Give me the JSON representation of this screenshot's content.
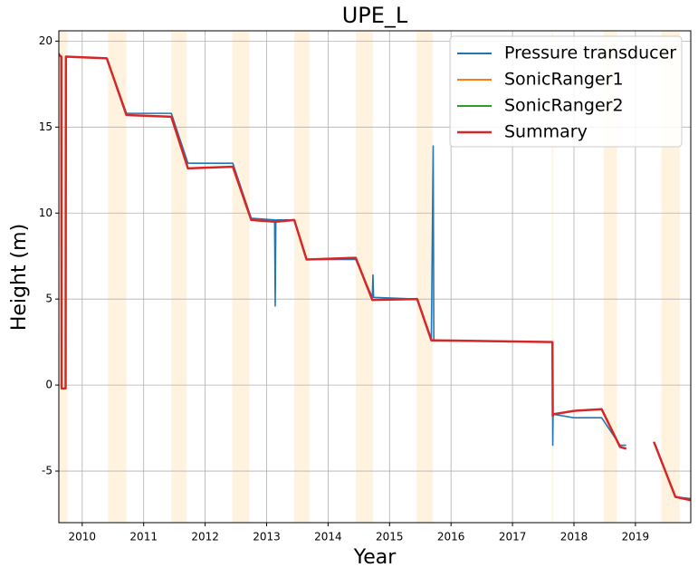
{
  "chart_data": {
    "type": "line",
    "title": "UPE_L",
    "xlabel": "Year",
    "ylabel": "Height (m)",
    "xlim": [
      2009.62,
      2019.9
    ],
    "xticks": [
      2010,
      2011,
      2012,
      2013,
      2014,
      2015,
      2016,
      2017,
      2018,
      2019
    ],
    "ylim": [
      -8,
      20.6
    ],
    "yticks": [
      -5,
      0,
      5,
      10,
      15,
      20
    ],
    "grid": true,
    "legend": "upper right",
    "shaded_spans": [
      [
        2009.62,
        2009.76
      ],
      [
        2010.42,
        2010.72
      ],
      [
        2011.45,
        2011.7
      ],
      [
        2012.44,
        2012.72
      ],
      [
        2013.45,
        2013.7
      ],
      [
        2014.45,
        2014.73
      ],
      [
        2015.44,
        2015.7
      ],
      [
        2017.64,
        2017.66
      ],
      [
        2018.48,
        2018.7
      ],
      [
        2019.42,
        2019.72
      ]
    ],
    "shade_color": "#fff3e0",
    "x": [
      2009.62,
      2009.66,
      2009.665,
      2009.73,
      2009.735,
      2010.4,
      2010.72,
      2011.45,
      2011.72,
      2012.45,
      2012.75,
      2013.13,
      2013.14,
      2013.15,
      2013.45,
      2013.65,
      2014.45,
      2014.72,
      2014.73,
      2014.74,
      2015.45,
      2015.68,
      2015.71,
      2015.72,
      2017.65,
      2017.655,
      2017.66,
      2018.0,
      2018.45,
      2018.75,
      2018.85,
      2018.9,
      2019.3,
      2019.65,
      2019.9
    ],
    "series": [
      {
        "name": "Pressure transducer",
        "color": "#1f77b4",
        "values": [
          19.3,
          19.0,
          -0.2,
          -0.2,
          19.1,
          19.0,
          15.8,
          15.8,
          12.9,
          12.9,
          9.7,
          9.6,
          4.6,
          9.6,
          9.6,
          7.3,
          7.3,
          5.1,
          6.4,
          5.1,
          5.0,
          2.7,
          13.9,
          2.6,
          2.5,
          -3.5,
          -1.7,
          -1.9,
          -1.9,
          -3.5,
          -3.5,
          null,
          -3.3,
          -6.5,
          -6.6
        ]
      },
      {
        "name": "SonicRanger1",
        "color": "#ff7f0e",
        "values": [
          null,
          null,
          null,
          null,
          null,
          19.0,
          15.7,
          15.6,
          12.6,
          12.7,
          9.6,
          9.5,
          9.5,
          9.5,
          9.6,
          7.3,
          7.4,
          4.95,
          4.95,
          4.95,
          5.0,
          null,
          null,
          null,
          null,
          null,
          null,
          null,
          null,
          null,
          null,
          null,
          null,
          null,
          null
        ]
      },
      {
        "name": "SonicRanger2",
        "color": "#2ca02c",
        "values": [
          null,
          null,
          null,
          null,
          null,
          null,
          null,
          null,
          null,
          null,
          null,
          null,
          null,
          null,
          null,
          null,
          null,
          null,
          null,
          null,
          5.0,
          2.6,
          2.6,
          2.6,
          2.5,
          -1.8,
          -1.7,
          -1.5,
          -1.4,
          -3.6,
          -3.7,
          null,
          -3.3,
          -6.5,
          -6.7
        ]
      },
      {
        "name": "Summary",
        "color": "#d62728",
        "values": [
          19.2,
          19.1,
          -0.2,
          -0.2,
          19.1,
          19.0,
          15.7,
          15.6,
          12.6,
          12.7,
          9.6,
          9.5,
          9.5,
          9.5,
          9.6,
          7.3,
          7.4,
          4.95,
          4.95,
          4.95,
          5.0,
          2.6,
          2.6,
          2.6,
          2.5,
          -1.8,
          -1.7,
          -1.5,
          -1.4,
          -3.6,
          -3.7,
          null,
          -3.3,
          -6.5,
          -6.7
        ]
      }
    ]
  }
}
